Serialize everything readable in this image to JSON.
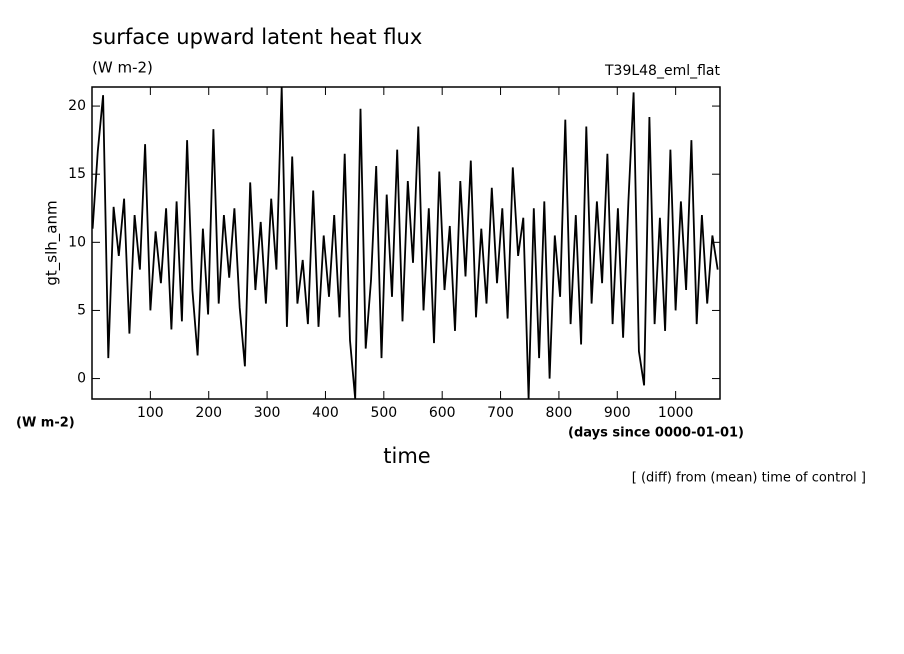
{
  "chart_data": {
    "type": "line",
    "title": "surface upward latent heat flux",
    "subtitle": "(W m-2)",
    "experiment": "T39L48_eml_flat",
    "y_label": "gt_slh_anm",
    "y_unit": "(W m-2)",
    "x_label": "time",
    "x_unit": "(days since 0000-01-01)",
    "note": "[ (diff) from (mean) time of control ]",
    "color": "#000000",
    "xlim": [
      0,
      1076
    ],
    "ylim": [
      -1.5,
      21.4
    ],
    "xticks": [
      100,
      200,
      300,
      400,
      500,
      600,
      700,
      800,
      900,
      1000
    ],
    "yticks": [
      0,
      5,
      10,
      15,
      20
    ],
    "x": [
      1,
      10,
      19,
      28,
      37,
      46,
      55,
      64,
      73,
      82,
      91,
      100,
      109,
      118,
      127,
      136,
      145,
      154,
      163,
      172,
      181,
      190,
      199,
      208,
      217,
      226,
      235,
      244,
      253,
      262,
      271,
      280,
      289,
      298,
      307,
      316,
      325,
      334,
      343,
      352,
      361,
      370,
      379,
      388,
      397,
      406,
      415,
      424,
      433,
      442,
      451,
      460,
      469,
      478,
      487,
      496,
      505,
      514,
      523,
      532,
      541,
      550,
      559,
      568,
      577,
      586,
      595,
      604,
      613,
      622,
      631,
      640,
      649,
      658,
      667,
      676,
      685,
      694,
      703,
      712,
      721,
      730,
      739,
      748,
      757,
      766,
      775,
      784,
      793,
      802,
      811,
      820,
      829,
      838,
      847,
      856,
      865,
      874,
      883,
      892,
      901,
      910,
      919,
      928,
      937,
      946,
      955,
      964,
      973,
      982,
      991,
      1000,
      1009,
      1018,
      1027,
      1036,
      1045,
      1054,
      1063,
      1072
    ],
    "values": [
      11,
      16.7,
      20.8,
      1.5,
      12.6,
      9,
      13.2,
      3.3,
      12,
      8,
      17.2,
      5,
      10.8,
      7,
      12.5,
      3.6,
      13,
      4.2,
      17.5,
      6.5,
      1.7,
      11,
      4.7,
      18.3,
      5.5,
      12,
      7.4,
      12.5,
      5.2,
      0.9,
      14.4,
      6.5,
      11.5,
      5.5,
      13.2,
      8,
      21.4,
      3.8,
      16.3,
      5.5,
      8.7,
      4,
      13.8,
      3.8,
      10.5,
      6,
      12,
      4.5,
      16.5,
      2.8,
      -1.5,
      19.8,
      2.2,
      7.2,
      15.6,
      1.5,
      13.5,
      6,
      16.8,
      4.2,
      14.5,
      8.5,
      18.5,
      5,
      12.5,
      2.6,
      15.2,
      6.5,
      11.2,
      3.5,
      14.5,
      7.5,
      16,
      4.5,
      11,
      5.5,
      14,
      7,
      12.5,
      4.4,
      15.5,
      9,
      11.8,
      -1.5,
      12.5,
      1.5,
      13,
      0,
      10.5,
      6,
      19,
      4,
      12,
      2.5,
      18.5,
      5.5,
      13,
      7,
      16.5,
      4,
      12.5,
      3,
      13,
      21,
      2,
      -0.5,
      19.2,
      4,
      11.8,
      3.5,
      16.8,
      5,
      13,
      6.5,
      17.5,
      4,
      12,
      5.5,
      10.5,
      8
    ]
  }
}
